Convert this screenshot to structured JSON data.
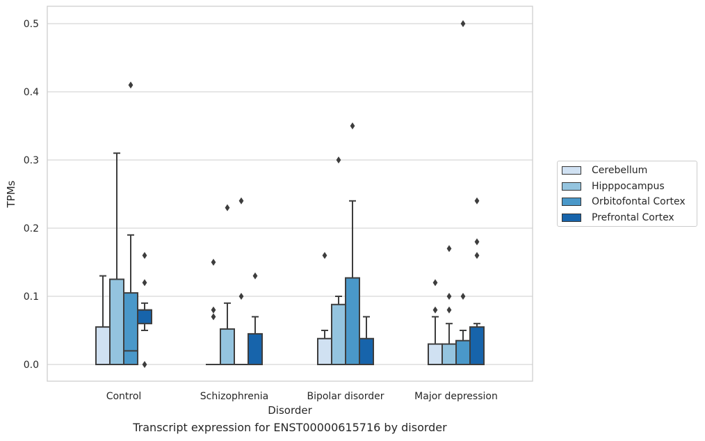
{
  "caption": "Transcript expression for ENST00000615716 by disorder",
  "chart_data": {
    "type": "box",
    "title": "",
    "xlabel": "Disorder",
    "ylabel": "TPMs",
    "ylim": [
      -0.025,
      0.526
    ],
    "yticks": [
      0.0,
      0.1,
      0.2,
      0.3,
      0.4,
      0.5
    ],
    "ytick_labels": [
      "0.0",
      "0.1",
      "0.2",
      "0.3",
      "0.4",
      "0.5"
    ],
    "grid": "horizontal",
    "legend_position": "right",
    "categories": [
      "Control",
      "Schizophrenia",
      "Bipolar disorder",
      "Major depression"
    ],
    "series": [
      {
        "name": "Cerebellum",
        "color": "#d0e1f2",
        "boxes": [
          {
            "whisker_low": 0.0,
            "q1": 0.0,
            "median": 0.0,
            "q3": 0.055,
            "whisker_high": 0.13,
            "outliers": []
          },
          {
            "whisker_low": 0.0,
            "q1": 0.0,
            "median": 0.0,
            "q3": 0.0,
            "whisker_high": 0.0,
            "outliers": [
              0.15,
              0.08,
              0.07
            ]
          },
          {
            "whisker_low": 0.0,
            "q1": 0.0,
            "median": 0.0,
            "q3": 0.038,
            "whisker_high": 0.05,
            "outliers": [
              0.16
            ]
          },
          {
            "whisker_low": 0.0,
            "q1": 0.0,
            "median": 0.0,
            "q3": 0.03,
            "whisker_high": 0.07,
            "outliers": [
              0.12,
              0.08
            ]
          }
        ]
      },
      {
        "name": "Hipppocampus",
        "color": "#94c4df",
        "boxes": [
          {
            "whisker_low": 0.0,
            "q1": 0.0,
            "median": 0.0,
            "q3": 0.125,
            "whisker_high": 0.31,
            "outliers": []
          },
          {
            "whisker_low": 0.0,
            "q1": 0.0,
            "median": 0.0,
            "q3": 0.052,
            "whisker_high": 0.09,
            "outliers": [
              0.23
            ]
          },
          {
            "whisker_low": 0.0,
            "q1": 0.0,
            "median": 0.0,
            "q3": 0.088,
            "whisker_high": 0.1,
            "outliers": [
              0.3
            ]
          },
          {
            "whisker_low": 0.0,
            "q1": 0.0,
            "median": 0.0,
            "q3": 0.03,
            "whisker_high": 0.06,
            "outliers": [
              0.17,
              0.1,
              0.08
            ]
          }
        ]
      },
      {
        "name": "Orbitofontal Cortex",
        "color": "#4a98c9",
        "boxes": [
          {
            "whisker_low": 0.0,
            "q1": 0.0,
            "median": 0.02,
            "q3": 0.105,
            "whisker_high": 0.19,
            "outliers": [
              0.41
            ]
          },
          {
            "whisker_low": 0.0,
            "q1": 0.0,
            "median": 0.0,
            "q3": 0.0,
            "whisker_high": 0.0,
            "outliers": [
              0.24,
              0.1
            ]
          },
          {
            "whisker_low": 0.0,
            "q1": 0.0,
            "median": 0.0,
            "q3": 0.127,
            "whisker_high": 0.24,
            "outliers": [
              0.35
            ]
          },
          {
            "whisker_low": 0.0,
            "q1": 0.0,
            "median": 0.0,
            "q3": 0.035,
            "whisker_high": 0.05,
            "outliers": [
              0.5,
              0.1
            ]
          }
        ]
      },
      {
        "name": "Prefrontal Cortex",
        "color": "#1764ab",
        "boxes": [
          {
            "whisker_low": 0.05,
            "q1": 0.06,
            "median": 0.08,
            "q3": 0.08,
            "whisker_high": 0.09,
            "outliers": [
              0.16,
              0.12,
              0.0
            ]
          },
          {
            "whisker_low": 0.0,
            "q1": 0.0,
            "median": 0.0,
            "q3": 0.045,
            "whisker_high": 0.07,
            "outliers": [
              0.13
            ]
          },
          {
            "whisker_low": 0.0,
            "q1": 0.0,
            "median": 0.0,
            "q3": 0.038,
            "whisker_high": 0.07,
            "outliers": []
          },
          {
            "whisker_low": 0.0,
            "q1": 0.0,
            "median": 0.0,
            "q3": 0.055,
            "whisker_high": 0.06,
            "outliers": [
              0.24,
              0.18,
              0.16
            ]
          }
        ]
      }
    ]
  }
}
